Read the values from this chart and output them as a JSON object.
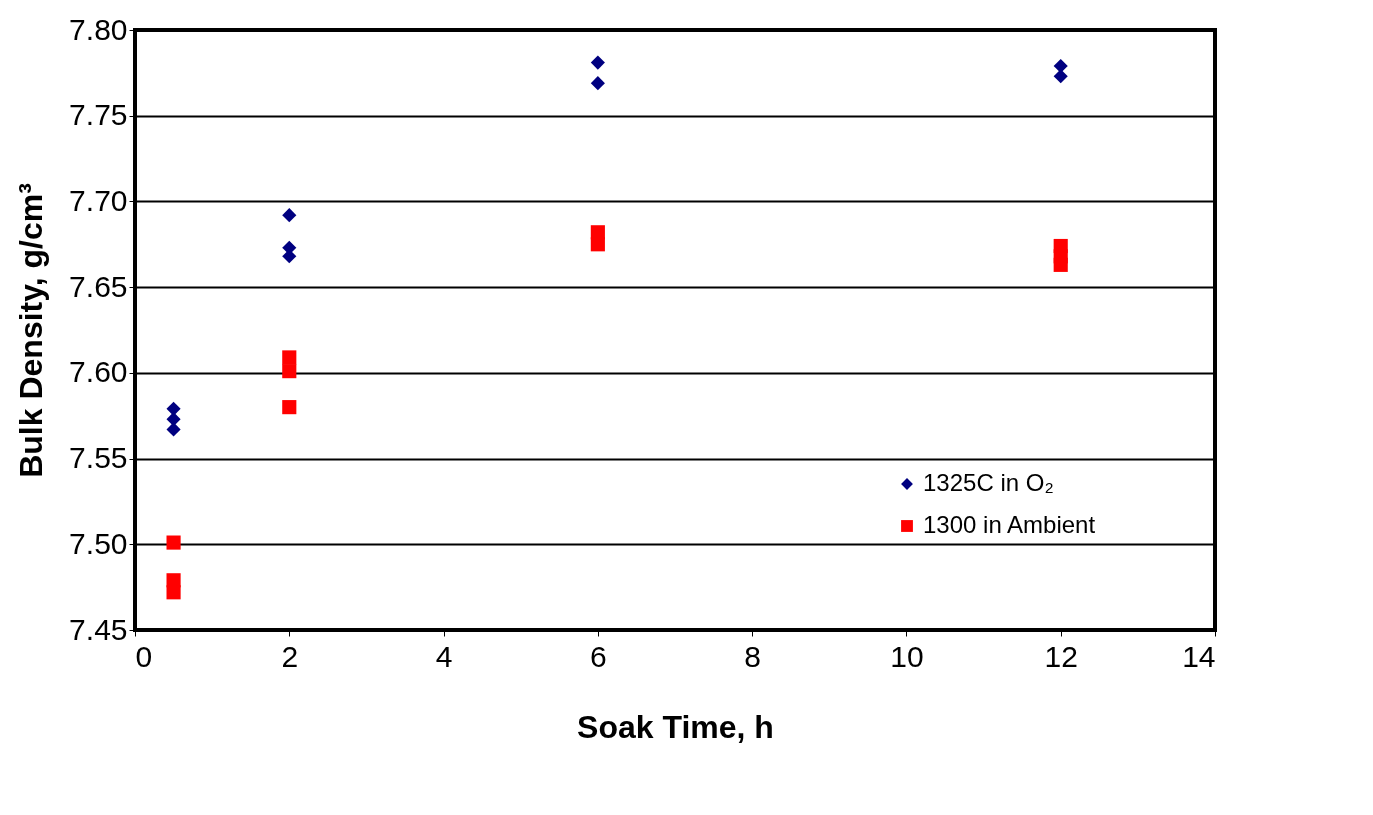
{
  "chart_data": {
    "type": "scatter",
    "xlabel": "Soak Time, h",
    "ylabel": "Bulk Density, g/cm³",
    "xlim": [
      0,
      14
    ],
    "xticks": [
      0,
      2,
      4,
      6,
      8,
      10,
      12,
      14
    ],
    "ylim": [
      7.45,
      7.8
    ],
    "yticks": [
      7.45,
      {
        "value": 7.5,
        "label": "7.50"
      },
      7.55,
      {
        "value": 7.6,
        "label": "7.60"
      },
      7.65,
      {
        "value": 7.7,
        "label": "7.70"
      },
      7.75,
      {
        "value": 7.8,
        "label": "7.80"
      }
    ],
    "grid": "y",
    "legend": "right",
    "series": [
      {
        "name": "1325C in O₂",
        "color": "#000080",
        "marker": "diamond",
        "x": [
          0.5,
          0.5,
          0.5,
          2,
          2,
          2,
          6,
          6,
          12,
          12
        ],
        "values": [
          7.579,
          7.573,
          7.567,
          7.692,
          7.673,
          7.668,
          7.781,
          7.769,
          7.779,
          7.773
        ]
      },
      {
        "name": "1300 in Ambient",
        "color": "#ff0000",
        "marker": "square",
        "x": [
          0.5,
          0.5,
          0.5,
          2,
          2,
          2,
          6,
          6,
          12,
          12,
          12
        ],
        "values": [
          7.501,
          7.479,
          7.472,
          7.58,
          7.609,
          7.601,
          7.682,
          7.675,
          7.674,
          7.668,
          7.663
        ]
      }
    ]
  }
}
